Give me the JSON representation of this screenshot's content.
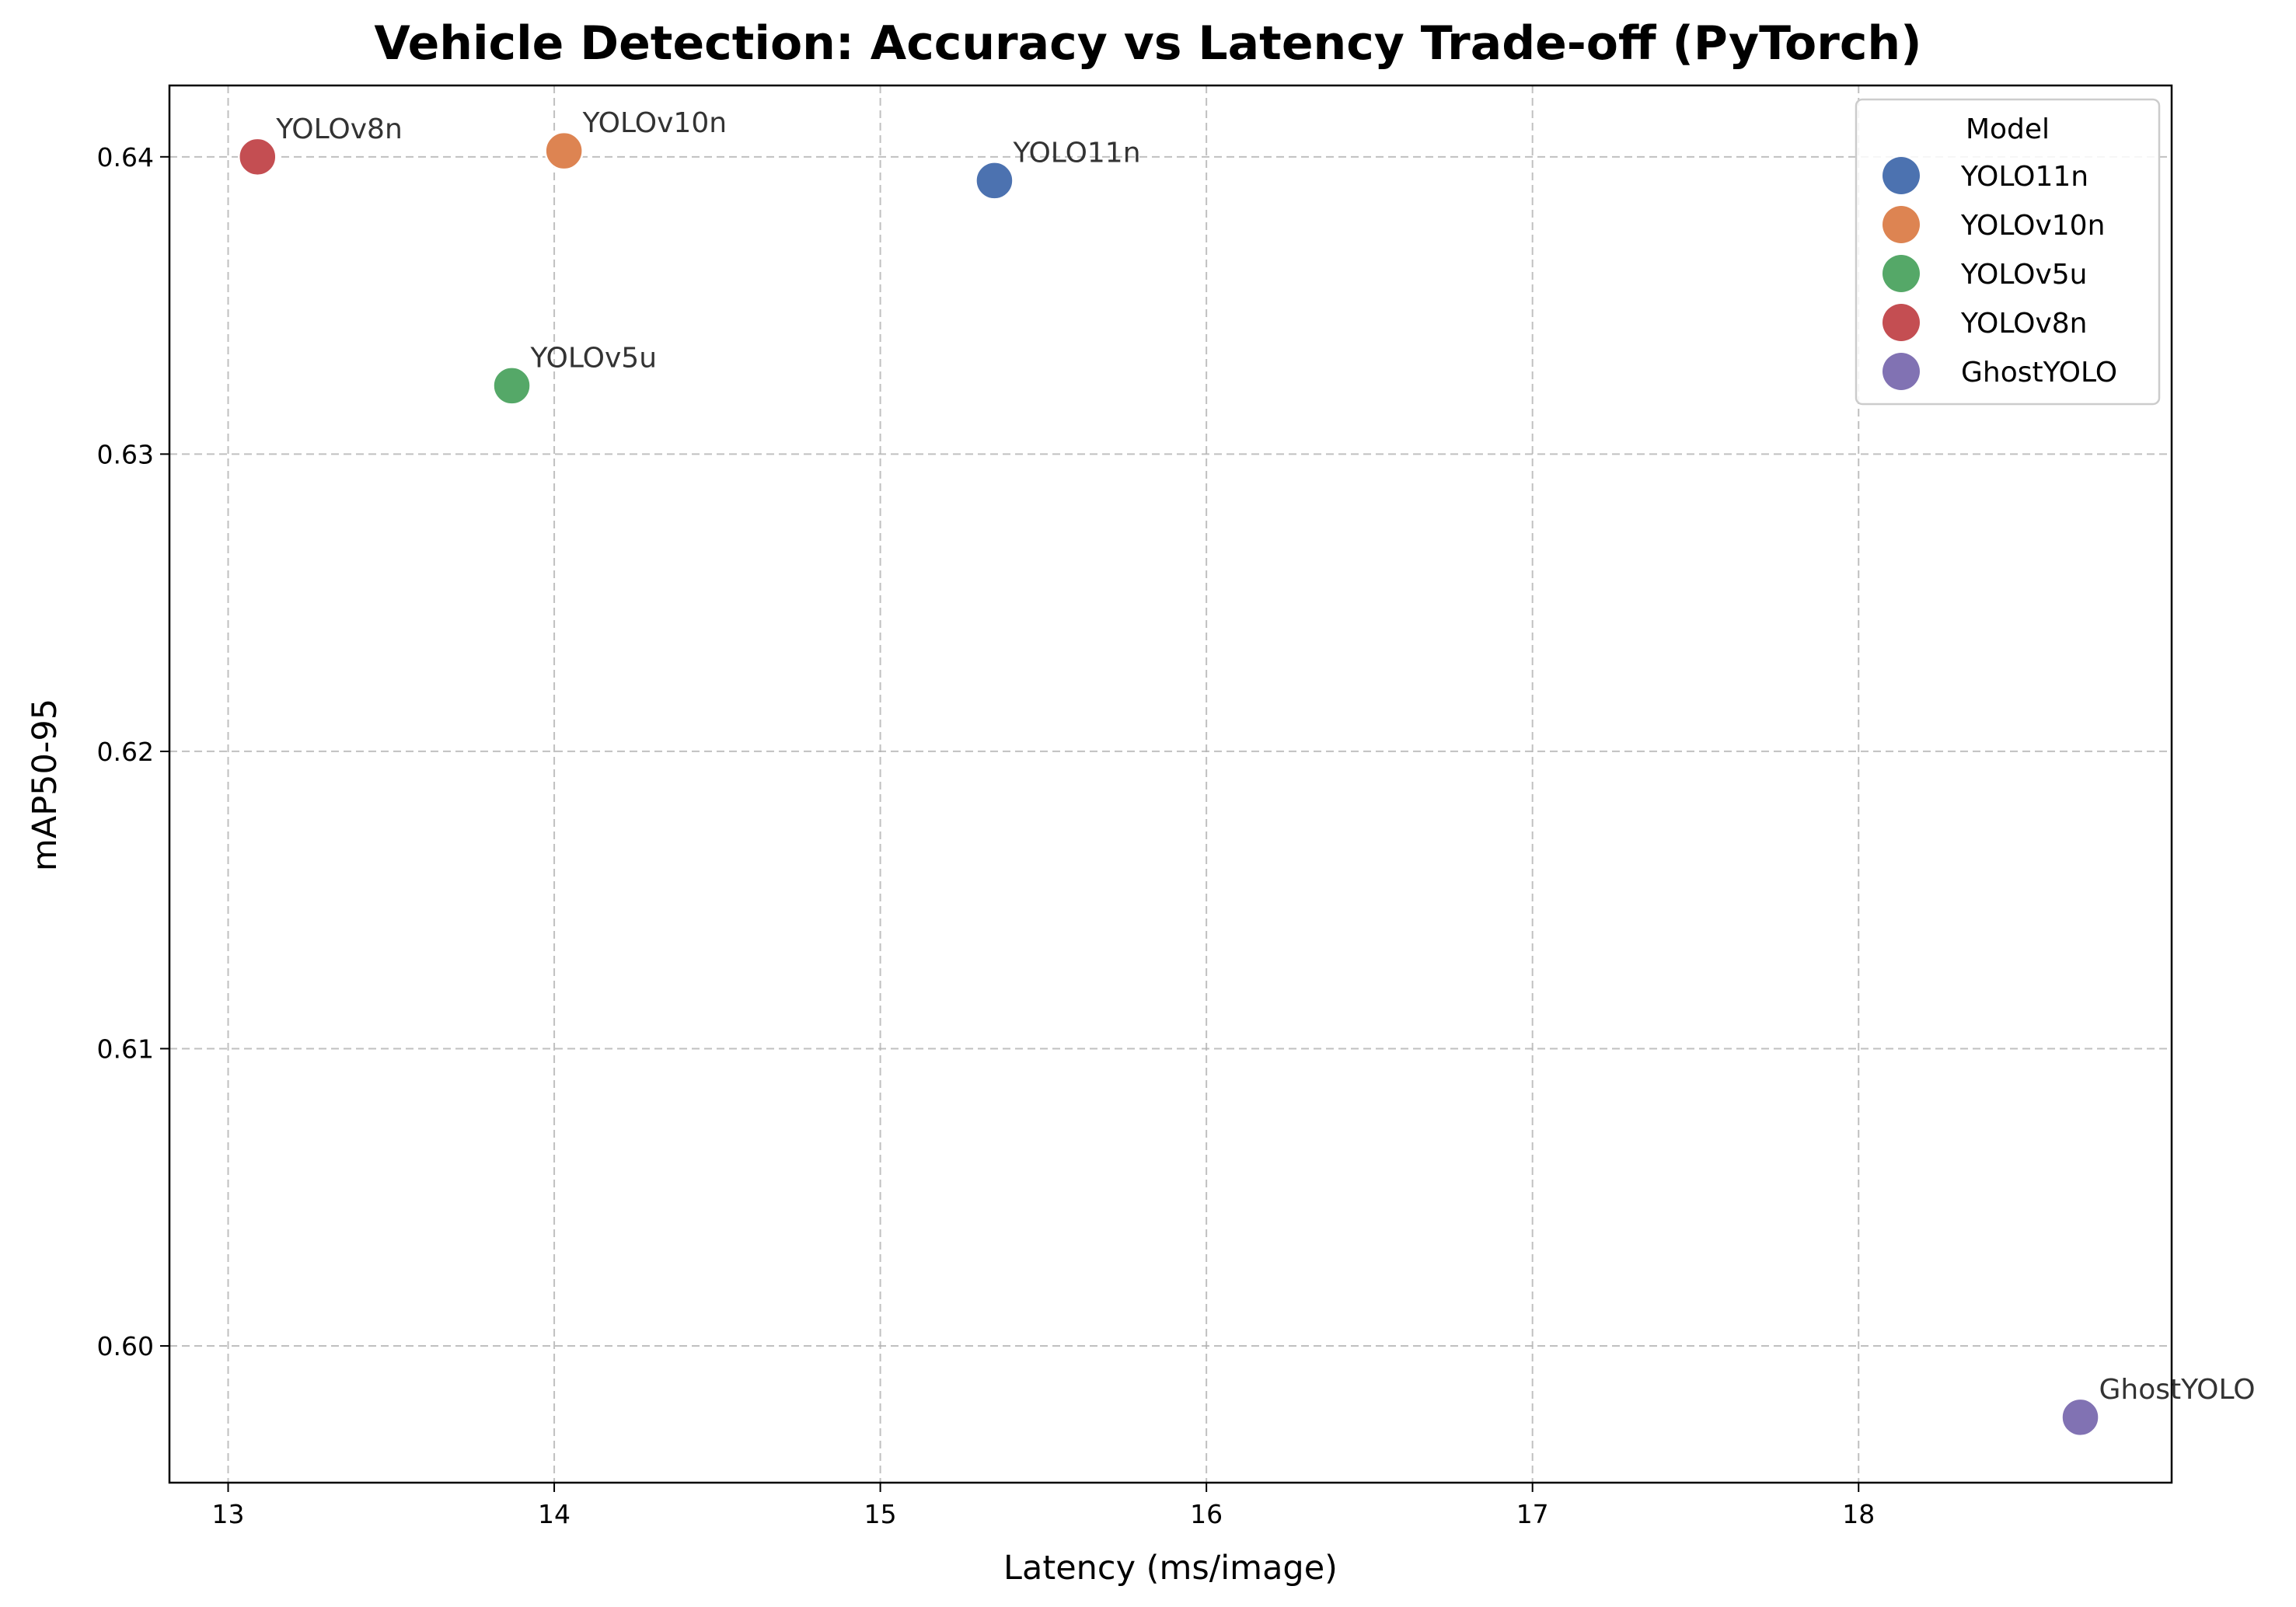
{
  "chart_data": {
    "type": "scatter",
    "title": "Vehicle Detection: Accuracy vs Latency Trade-off (PyTorch)",
    "xlabel": "Latency (ms/image)",
    "ylabel": "mAP50-95",
    "xlim": [
      12.82,
      18.96
    ],
    "ylim": [
      0.5954,
      0.6424
    ],
    "xticks": [
      13,
      14,
      15,
      16,
      17,
      18
    ],
    "xtick_labels": [
      "13",
      "14",
      "15",
      "16",
      "17",
      "18"
    ],
    "yticks": [
      0.6,
      0.61,
      0.62,
      0.63,
      0.64
    ],
    "ytick_labels": [
      "0.60",
      "0.61",
      "0.62",
      "0.63",
      "0.64"
    ],
    "grid": true,
    "legend": {
      "title": "Model",
      "placement": "top-right"
    },
    "series": [
      {
        "name": "YOLO11n",
        "color": "#4c72b0",
        "x": 15.35,
        "y": 0.6392,
        "label": "YOLO11n"
      },
      {
        "name": "YOLOv10n",
        "color": "#dd8452",
        "x": 14.03,
        "y": 0.6402,
        "label": "YOLOv10n"
      },
      {
        "name": "YOLOv5u",
        "color": "#55a868",
        "x": 13.87,
        "y": 0.6323,
        "label": "YOLOv5u"
      },
      {
        "name": "YOLOv8n",
        "color": "#c44e52",
        "x": 13.09,
        "y": 0.64,
        "label": "YOLOv8n"
      },
      {
        "name": "GhostYOLO",
        "color": "#8172b3",
        "x": 18.68,
        "y": 0.5976,
        "label": "GhostYOLO"
      }
    ]
  }
}
